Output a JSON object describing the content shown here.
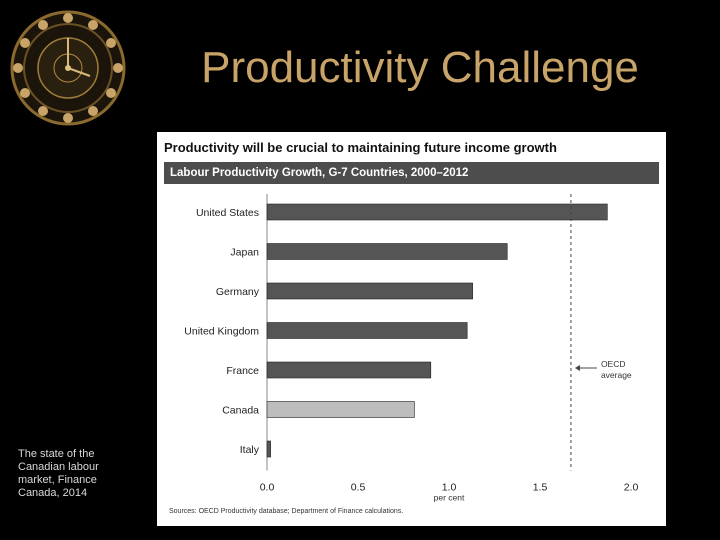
{
  "slide": {
    "title": "Productivity Challenge",
    "caption": "The state of the Canadian labour market, Finance Canada, 2014"
  },
  "colors": {
    "title": "#c9a468",
    "bar_default": "#555555",
    "bar_highlight": "#bdbdbd",
    "header_bg": "#4d4d4d"
  },
  "chart_data": {
    "type": "bar",
    "orientation": "horizontal",
    "title": "Productivity will be crucial to maintaining future income growth",
    "subtitle": "Labour Productivity Growth, G-7 Countries, 2000–2012",
    "categories": [
      "United States",
      "Japan",
      "Germany",
      "United Kingdom",
      "France",
      "Canada",
      "Italy"
    ],
    "values": [
      1.87,
      1.32,
      1.13,
      1.1,
      0.9,
      0.81,
      0.02
    ],
    "highlight": "Canada",
    "xlabel": "per cent",
    "xlim": [
      0.0,
      2.0
    ],
    "xticks": [
      "0.0",
      "0.5",
      "1.0",
      "1.5",
      "2.0"
    ],
    "reference_line": {
      "value": 1.67,
      "label_lines": [
        "OECD",
        "average"
      ],
      "style": "dashed"
    },
    "source": "Sources: OECD Productivity database; Department of Finance calculations."
  }
}
